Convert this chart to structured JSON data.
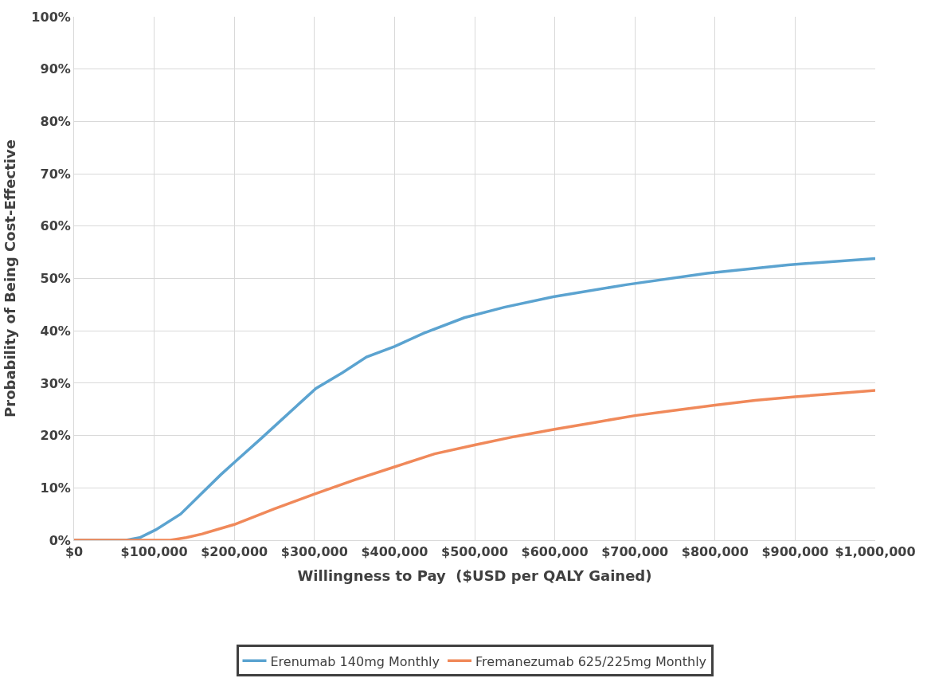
{
  "chart_data": {
    "type": "line",
    "xlabel": "Willingness to Pay  ($USD per QALY Gained)",
    "ylabel": "Probability of Being Cost-Effective",
    "xlim": [
      0,
      1000000
    ],
    "ylim": [
      0,
      100
    ],
    "xticks": [
      {
        "value": 0,
        "label": "$0"
      },
      {
        "value": 100000,
        "label": "$100,000"
      },
      {
        "value": 200000,
        "label": "$200,000"
      },
      {
        "value": 300000,
        "label": "$300,000"
      },
      {
        "value": 400000,
        "label": "$400,000"
      },
      {
        "value": 500000,
        "label": "$500,000"
      },
      {
        "value": 600000,
        "label": "$600,000"
      },
      {
        "value": 700000,
        "label": "$700,000"
      },
      {
        "value": 800000,
        "label": "$800,000"
      },
      {
        "value": 900000,
        "label": "$900,000"
      },
      {
        "value": 1000000,
        "label": "$1,000,000"
      }
    ],
    "yticks": [
      {
        "value": 0,
        "label": "0%"
      },
      {
        "value": 10,
        "label": "10%"
      },
      {
        "value": 20,
        "label": "20%"
      },
      {
        "value": 30,
        "label": "30%"
      },
      {
        "value": 40,
        "label": "40%"
      },
      {
        "value": 50,
        "label": "50%"
      },
      {
        "value": 60,
        "label": "60%"
      },
      {
        "value": 70,
        "label": "70%"
      },
      {
        "value": 80,
        "label": "80%"
      },
      {
        "value": 90,
        "label": "90%"
      },
      {
        "value": 100,
        "label": "100%"
      }
    ],
    "grid": true,
    "legend": "bottom",
    "marker": "none",
    "line_style": "solid",
    "series": [
      {
        "name": "Erenumab 140mg Monthly",
        "color": "#5ba3d0",
        "x": [
          0,
          50000,
          65000,
          82000,
          102000,
          133000,
          153000,
          183000,
          201000,
          234000,
          259000,
          284000,
          302000,
          335000,
          365000,
          400000,
          436000,
          487000,
          537000,
          598000,
          689000,
          790000,
          891000,
          1000000
        ],
        "values": [
          0,
          0,
          0,
          0.5,
          2,
          5,
          8,
          12.5,
          15,
          19.5,
          23,
          26.5,
          29,
          32,
          35,
          37,
          39.5,
          42.5,
          44.5,
          46.5,
          48.8,
          51,
          52.6,
          53.8
        ]
      },
      {
        "name": "Fremanezumab 625/225mg Monthly",
        "color": "#f0895a",
        "x": [
          0,
          100000,
          120000,
          140000,
          160000,
          200000,
          250000,
          300000,
          350000,
          400000,
          450000,
          500000,
          550000,
          600000,
          650000,
          700000,
          750000,
          800000,
          850000,
          900000,
          950000,
          1000000
        ],
        "values": [
          0,
          0,
          0,
          0.5,
          1.2,
          3,
          6,
          8.8,
          11.5,
          14,
          16.5,
          18.2,
          19.8,
          21.2,
          22.5,
          23.8,
          24.8,
          25.8,
          26.7,
          27.4,
          28,
          28.6
        ]
      }
    ]
  }
}
